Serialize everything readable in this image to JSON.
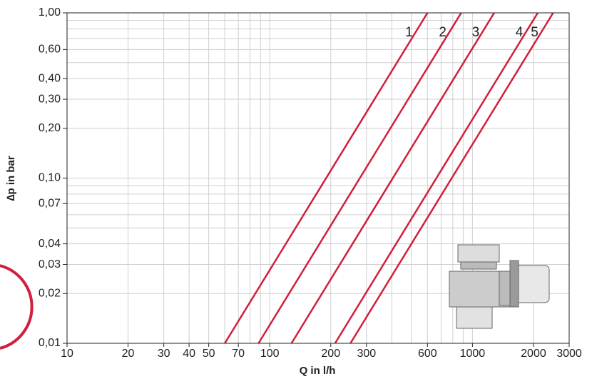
{
  "chart_data": {
    "type": "line",
    "log_x": true,
    "log_y": true,
    "grid": true,
    "x_label": "Q in l/h",
    "y_label": "∆p in bar",
    "xlim": [
      10,
      3000
    ],
    "ylim": [
      0.01,
      1
    ],
    "xticks": [
      10,
      20,
      30,
      40,
      50,
      70,
      100,
      200,
      300,
      600,
      1000,
      2000,
      3000
    ],
    "yticks": [
      {
        "value": 0.01,
        "label": "0,01"
      },
      {
        "value": 0.02,
        "label": "0,02"
      },
      {
        "value": 0.03,
        "label": "0,03"
      },
      {
        "value": 0.04,
        "label": "0,04"
      },
      {
        "value": 0.07,
        "label": "0,07"
      },
      {
        "value": 0.1,
        "label": "0,10"
      },
      {
        "value": 0.2,
        "label": "0,20"
      },
      {
        "value": 0.3,
        "label": "0,30"
      },
      {
        "value": 0.4,
        "label": "0,40"
      },
      {
        "value": 0.6,
        "label": "0,60"
      },
      {
        "value": 1,
        "label": "1,00"
      }
    ],
    "xgrid": [
      10,
      20,
      30,
      40,
      50,
      60,
      70,
      80,
      90,
      100,
      200,
      300,
      400,
      500,
      600,
      700,
      800,
      900,
      1000,
      2000,
      3000
    ],
    "ygrid": [
      0.01,
      0.02,
      0.03,
      0.04,
      0.05,
      0.06,
      0.07,
      0.08,
      0.09,
      0.1,
      0.2,
      0.3,
      0.4,
      0.5,
      0.6,
      0.7,
      0.8,
      0.9,
      1
    ],
    "series": [
      {
        "name": "1",
        "color": "#d11f3c",
        "x": [
          60,
          600
        ],
        "values": [
          0.01,
          1
        ]
      },
      {
        "name": "2",
        "color": "#d11f3c",
        "x": [
          88,
          880
        ],
        "values": [
          0.01,
          1
        ]
      },
      {
        "name": "3",
        "color": "#d11f3c",
        "x": [
          128,
          1280
        ],
        "values": [
          0.01,
          1
        ]
      },
      {
        "name": "4",
        "color": "#d11f3c",
        "x": [
          210,
          2100
        ],
        "values": [
          0.01,
          1
        ]
      },
      {
        "name": "5",
        "color": "#d11f3c",
        "x": [
          250,
          2500
        ],
        "values": [
          0.01,
          1
        ]
      }
    ]
  }
}
